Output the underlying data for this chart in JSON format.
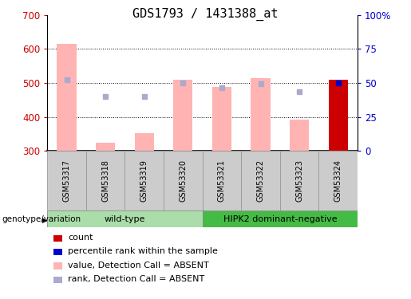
{
  "title": "GDS1793 / 1431388_at",
  "samples": [
    "GSM53317",
    "GSM53318",
    "GSM53319",
    "GSM53320",
    "GSM53321",
    "GSM53322",
    "GSM53323",
    "GSM53324"
  ],
  "y_min": 300,
  "y_max": 700,
  "y_ticks": [
    300,
    400,
    500,
    600,
    700
  ],
  "y2_ticks": [
    0,
    25,
    50,
    75,
    100
  ],
  "y2_labels": [
    "0",
    "25",
    "50",
    "75",
    "100%"
  ],
  "bar_values": [
    615,
    325,
    352,
    510,
    488,
    515,
    392,
    510
  ],
  "bar_colors": [
    "#ffb3b3",
    "#ffb3b3",
    "#ffb3b3",
    "#ffb3b3",
    "#ffb3b3",
    "#ffb3b3",
    "#ffb3b3",
    "#cc0000"
  ],
  "rank_values": [
    510,
    460,
    460,
    500,
    487,
    498,
    474,
    500
  ],
  "rank_colors": [
    "#aaaacc",
    "#aaaacc",
    "#aaaacc",
    "#aaaacc",
    "#aaaacc",
    "#aaaacc",
    "#aaaacc",
    "#0000cc"
  ],
  "genotype_groups": [
    {
      "label": "wild-type",
      "start": 0,
      "end": 3,
      "color": "#aaddaa"
    },
    {
      "label": "HIPK2 dominant-negative",
      "start": 4,
      "end": 7,
      "color": "#44bb44"
    }
  ],
  "legend_items": [
    {
      "color": "#cc0000",
      "label": "count"
    },
    {
      "color": "#0000cc",
      "label": "percentile rank within the sample"
    },
    {
      "color": "#ffb3b3",
      "label": "value, Detection Call = ABSENT"
    },
    {
      "color": "#aaaacc",
      "label": "rank, Detection Call = ABSENT"
    }
  ],
  "tick_label_color_left": "#cc0000",
  "tick_label_color_right": "#0000cc",
  "title_fontsize": 11,
  "legend_fontsize": 8
}
